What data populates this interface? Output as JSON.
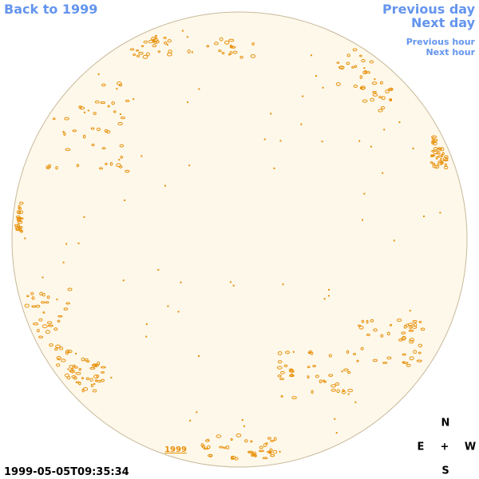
{
  "nav": {
    "back": "Back to 1999",
    "previous_day": "Previous day",
    "next_day": "Next day",
    "previous_hour": "Previous hour",
    "next_hour": "Next hour"
  },
  "image": {
    "year_label": "1999",
    "timestamp": "1999-05-05T09:35:34"
  },
  "compass": {
    "north": "N",
    "center": "+",
    "east": "E",
    "west": "W",
    "south": "S"
  }
}
